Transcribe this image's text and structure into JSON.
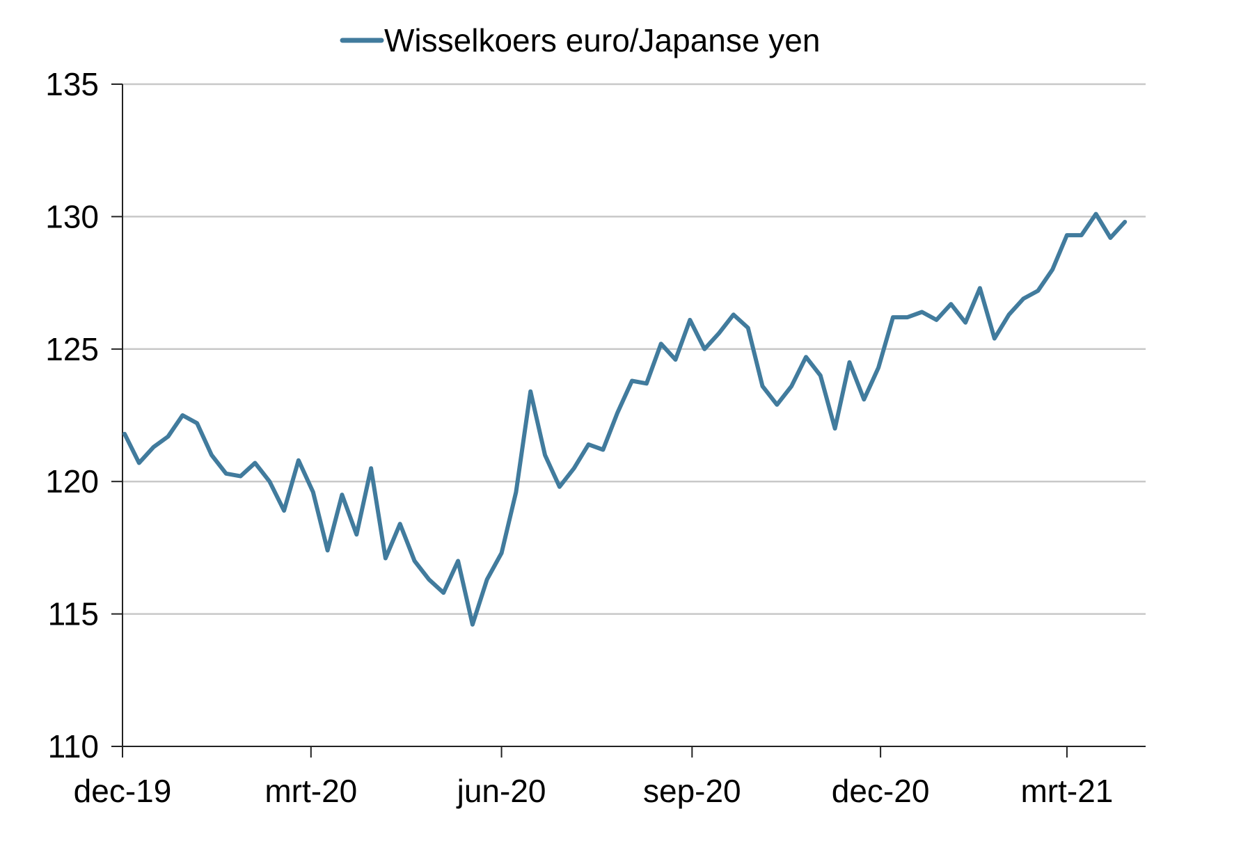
{
  "chart_data": {
    "type": "line",
    "legend": {
      "position": "top-center"
    },
    "series": [
      {
        "name": "Wisselkoers euro/Japanse yen",
        "color": "#417b9d",
        "x": [
          "2019-12-02",
          "2019-12-09",
          "2019-12-16",
          "2019-12-23",
          "2019-12-30",
          "2020-01-06",
          "2020-01-13",
          "2020-01-20",
          "2020-01-27",
          "2020-02-03",
          "2020-02-10",
          "2020-02-17",
          "2020-02-24",
          "2020-03-02",
          "2020-03-09",
          "2020-03-16",
          "2020-03-23",
          "2020-03-30",
          "2020-04-06",
          "2020-04-13",
          "2020-04-20",
          "2020-04-27",
          "2020-05-04",
          "2020-05-11",
          "2020-05-18",
          "2020-05-25",
          "2020-06-01",
          "2020-06-08",
          "2020-06-15",
          "2020-06-22",
          "2020-06-29",
          "2020-07-06",
          "2020-07-13",
          "2020-07-20",
          "2020-07-27",
          "2020-08-03",
          "2020-08-10",
          "2020-08-17",
          "2020-08-24",
          "2020-08-31",
          "2020-09-07",
          "2020-09-14",
          "2020-09-21",
          "2020-09-28",
          "2020-10-05",
          "2020-10-12",
          "2020-10-19",
          "2020-10-26",
          "2020-11-02",
          "2020-11-09",
          "2020-11-16",
          "2020-11-23",
          "2020-11-30",
          "2020-12-07",
          "2020-12-14",
          "2020-12-21",
          "2020-12-28",
          "2021-01-04",
          "2021-01-11",
          "2021-01-18",
          "2021-01-25",
          "2021-02-01",
          "2021-02-08",
          "2021-02-15",
          "2021-02-22",
          "2021-03-01",
          "2021-03-08",
          "2021-03-15",
          "2021-03-22",
          "2021-03-29"
        ],
        "values": [
          121.8,
          120.7,
          121.3,
          121.7,
          122.5,
          122.2,
          121.0,
          120.3,
          120.2,
          120.7,
          120.0,
          118.9,
          120.8,
          119.6,
          117.4,
          119.5,
          118.0,
          120.5,
          117.1,
          118.4,
          117.0,
          116.3,
          115.8,
          117.0,
          114.6,
          116.3,
          117.3,
          119.6,
          123.4,
          121.0,
          119.8,
          120.5,
          121.4,
          121.2,
          122.6,
          123.8,
          123.7,
          125.2,
          124.6,
          126.1,
          125.0,
          125.6,
          126.3,
          125.8,
          123.6,
          122.9,
          123.6,
          124.7,
          124.0,
          122.0,
          124.5,
          123.1,
          124.3,
          126.2,
          126.2,
          126.4,
          126.1,
          126.7,
          126.0,
          127.3,
          125.4,
          126.3,
          126.9,
          127.2,
          128.0,
          129.3,
          129.3,
          130.1,
          129.2,
          129.8
        ]
      }
    ],
    "xticks": [
      {
        "value": "2019-12-01",
        "label": "dec-19"
      },
      {
        "value": "2020-03-01",
        "label": "mrt-20"
      },
      {
        "value": "2020-06-01",
        "label": "jun-20"
      },
      {
        "value": "2020-09-01",
        "label": "sep-20"
      },
      {
        "value": "2020-12-01",
        "label": "dec-20"
      },
      {
        "value": "2021-03-01",
        "label": "mrt-21"
      }
    ],
    "xlim": [
      "2019-12-01",
      "2021-04-08"
    ],
    "ylim": [
      110,
      135
    ],
    "yticks": [
      110,
      115,
      120,
      125,
      130,
      135
    ],
    "grid": {
      "horizontal": true,
      "vertical": false
    },
    "title": "",
    "xlabel": "",
    "ylabel": ""
  }
}
